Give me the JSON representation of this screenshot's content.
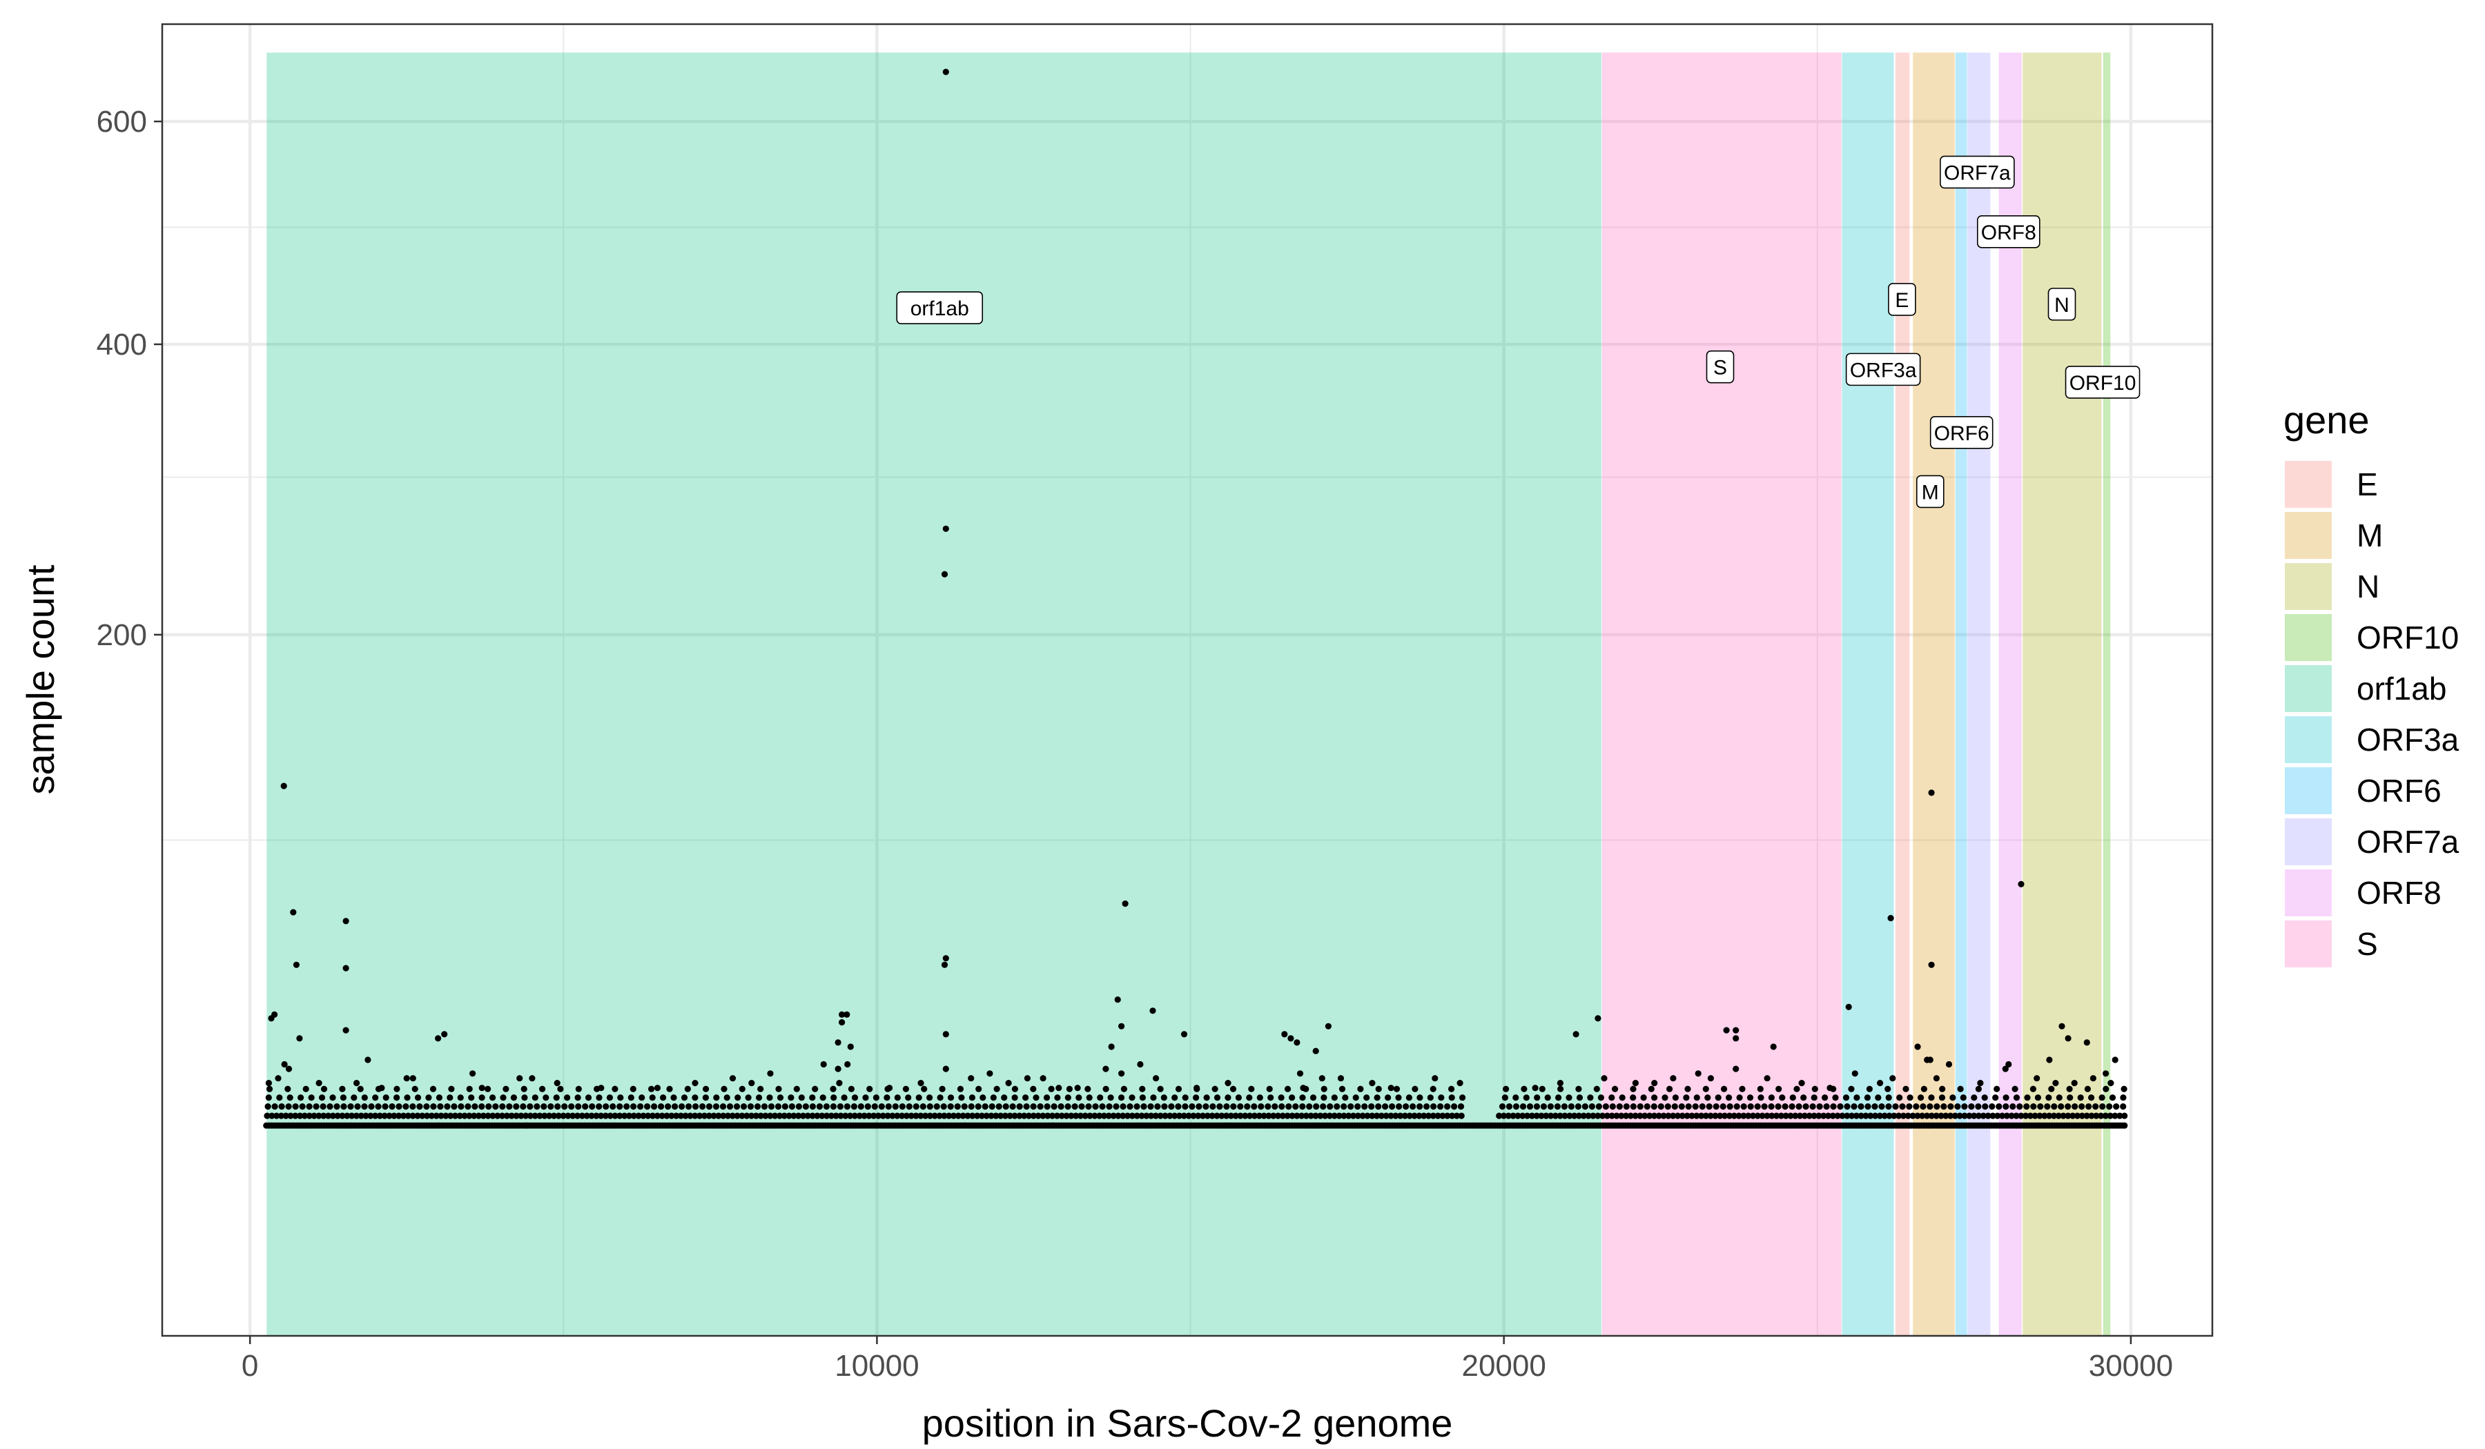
{
  "chart_data": {
    "type": "scatter",
    "xlabel": "position in Sars-Cov-2 genome",
    "ylabel": "sample count",
    "xlim": [
      -1400,
      31300
    ],
    "ylim": [
      0,
      700
    ],
    "y_scale": "square root",
    "x_ticks": [
      0,
      10000,
      20000,
      30000
    ],
    "x_tick_labels": [
      "0",
      "10000",
      "20000",
      "30000"
    ],
    "y_ticks": [
      200,
      400,
      600
    ],
    "y_tick_labels": [
      "200",
      "400",
      "600"
    ],
    "grid": true,
    "legend": {
      "title": "gene",
      "position": "right",
      "entries": [
        {
          "label": "E",
          "color": "#F8766D"
        },
        {
          "label": "M",
          "color": "#D89000"
        },
        {
          "label": "N",
          "color": "#A3A500"
        },
        {
          "label": "ORF10",
          "color": "#39B600"
        },
        {
          "label": "orf1ab",
          "color": "#00BF7D"
        },
        {
          "label": "ORF3a",
          "color": "#00BFC4"
        },
        {
          "label": "ORF6",
          "color": "#00B0F6"
        },
        {
          "label": "ORF7a",
          "color": "#9590FF"
        },
        {
          "label": "ORF8",
          "color": "#E76BF3"
        },
        {
          "label": "S",
          "color": "#FF62BC"
        }
      ]
    },
    "gene_regions": [
      {
        "gene": "orf1ab",
        "start": 266,
        "end": 21555
      },
      {
        "gene": "S",
        "start": 21563,
        "end": 25384
      },
      {
        "gene": "ORF3a",
        "start": 25393,
        "end": 26220
      },
      {
        "gene": "E",
        "start": 26245,
        "end": 26472
      },
      {
        "gene": "M",
        "start": 26523,
        "end": 27191
      },
      {
        "gene": "ORF6",
        "start": 27202,
        "end": 27387
      },
      {
        "gene": "ORF7a",
        "start": 27394,
        "end": 27759
      },
      {
        "gene": "ORF8",
        "start": 27894,
        "end": 28259
      },
      {
        "gene": "N",
        "start": 28274,
        "end": 29533
      },
      {
        "gene": "ORF10",
        "start": 29558,
        "end": 29674
      }
    ],
    "region_y_range": [
      0,
      670
    ],
    "gene_labels": [
      {
        "text": "orf1ab",
        "x": 11000,
        "y": 430
      },
      {
        "text": "S",
        "x": 23450,
        "y": 382
      },
      {
        "text": "ORF3a",
        "x": 26050,
        "y": 380
      },
      {
        "text": "E",
        "x": 26350,
        "y": 437
      },
      {
        "text": "M",
        "x": 26800,
        "y": 290
      },
      {
        "text": "ORF6",
        "x": 27300,
        "y": 332
      },
      {
        "text": "ORF7a",
        "x": 27550,
        "y": 551
      },
      {
        "text": "ORF8",
        "x": 28050,
        "y": 496
      },
      {
        "text": "N",
        "x": 28900,
        "y": 433
      },
      {
        "text": "ORF10",
        "x": 29550,
        "y": 370
      }
    ],
    "points": [
      [
        11100,
        650
      ],
      [
        11080,
        420
      ],
      [
        11100,
        265
      ],
      [
        11080,
        236
      ],
      [
        540,
        123
      ],
      [
        690,
        73
      ],
      [
        740,
        56
      ],
      [
        1530,
        70
      ],
      [
        1530,
        55
      ],
      [
        13960,
        76
      ],
      [
        26820,
        120
      ],
      [
        28250,
        83
      ],
      [
        26170,
        71
      ],
      [
        26820,
        56
      ],
      [
        25500,
        44
      ],
      [
        11080,
        56
      ],
      [
        11100,
        58
      ],
      [
        11100,
        37
      ],
      [
        790,
        36
      ],
      [
        1530,
        38
      ],
      [
        340,
        41
      ],
      [
        390,
        42
      ],
      [
        14400,
        43
      ],
      [
        13840,
        46
      ],
      [
        9440,
        42
      ],
      [
        9520,
        42
      ],
      [
        9440,
        40
      ],
      [
        17200,
        39
      ],
      [
        16500,
        37
      ],
      [
        16600,
        36
      ],
      [
        21500,
        41
      ],
      [
        3000,
        36
      ],
      [
        3100,
        37
      ],
      [
        21150,
        37
      ],
      [
        23550,
        38
      ],
      [
        23700,
        38
      ],
      [
        23700,
        36
      ],
      [
        13740,
        34
      ],
      [
        14900,
        37
      ],
      [
        13900,
        39
      ],
      [
        24300,
        34
      ],
      [
        26800,
        31
      ],
      [
        28900,
        39
      ],
      [
        29000,
        36
      ],
      [
        29300,
        35
      ],
      [
        17000,
        33
      ],
      [
        16700,
        35
      ],
      [
        9380,
        35
      ],
      [
        9580,
        34
      ],
      [
        550,
        30
      ],
      [
        620,
        29
      ],
      [
        1880,
        31
      ],
      [
        2500,
        27
      ],
      [
        2600,
        27
      ],
      [
        3550,
        28
      ],
      [
        4300,
        27
      ],
      [
        4500,
        27
      ],
      [
        7700,
        27
      ],
      [
        8300,
        28
      ],
      [
        9150,
        30
      ],
      [
        9380,
        29
      ],
      [
        9530,
        30
      ],
      [
        11100,
        29
      ],
      [
        11500,
        27
      ],
      [
        11800,
        28
      ],
      [
        12400,
        27
      ],
      [
        12650,
        27
      ],
      [
        13650,
        29
      ],
      [
        13900,
        28
      ],
      [
        14450,
        27
      ],
      [
        16750,
        28
      ],
      [
        17100,
        27
      ],
      [
        17400,
        27
      ],
      [
        22700,
        27
      ],
      [
        23100,
        28
      ],
      [
        23300,
        27
      ],
      [
        23700,
        29
      ],
      [
        24200,
        27
      ],
      [
        25600,
        28
      ],
      [
        26200,
        27
      ],
      [
        26600,
        34
      ],
      [
        26750,
        31
      ],
      [
        27100,
        30
      ],
      [
        28000,
        29
      ],
      [
        28050,
        30
      ],
      [
        28700,
        31
      ],
      [
        29600,
        28
      ],
      [
        29750,
        31
      ],
      [
        14200,
        30
      ],
      [
        18900,
        27
      ],
      [
        21600,
        27
      ],
      [
        300,
        26
      ],
      [
        450,
        27
      ],
      [
        1100,
        26
      ],
      [
        1700,
        26
      ],
      [
        3700,
        25
      ],
      [
        4900,
        26
      ],
      [
        6500,
        25
      ],
      [
        8000,
        26
      ],
      [
        9400,
        26
      ],
      [
        10200,
        25
      ],
      [
        12100,
        26
      ],
      [
        15600,
        26
      ],
      [
        16800,
        25
      ],
      [
        19300,
        26
      ],
      [
        20500,
        25
      ],
      [
        20900,
        26
      ],
      [
        22400,
        26
      ],
      [
        25200,
        25
      ],
      [
        26000,
        26
      ],
      [
        26900,
        27
      ],
      [
        27600,
        26
      ],
      [
        28500,
        27
      ],
      [
        29100,
        26
      ],
      [
        29400,
        27
      ],
      [
        29680,
        26
      ],
      [
        10700,
        26
      ],
      [
        13200,
        25
      ],
      [
        18200,
        25
      ],
      [
        24750,
        26
      ],
      [
        2100,
        25
      ],
      [
        5600,
        25
      ],
      [
        7100,
        26
      ],
      [
        12900,
        25
      ],
      [
        15100,
        25
      ],
      [
        17900,
        26
      ],
      [
        22100,
        26
      ],
      [
        28800,
        26
      ]
    ],
    "dense_band": {
      "range": [
        0,
        29900
      ],
      "gaps": [
        [
          19350,
          19900
        ]
      ],
      "rows": [
        {
          "y": 18,
          "spacing": 40
        },
        {
          "y": 19.7,
          "spacing": 75
        },
        {
          "y": 21.4,
          "spacing": 110
        },
        {
          "y": 23.1,
          "spacing": 170
        },
        {
          "y": 24.8,
          "spacing": 290
        }
      ]
    }
  }
}
